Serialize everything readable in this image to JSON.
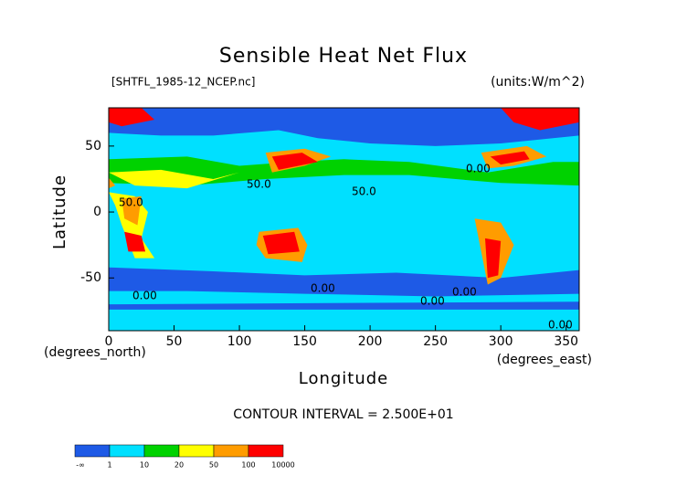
{
  "chart_data": {
    "type": "contour-map",
    "title": "Sensible Heat Net Flux",
    "subtitle": "[SHTFL_1985-12_NCEP.nc]",
    "units": "(units:W/m^2)",
    "x_label": "Longitude",
    "y_label": "Latitude",
    "x_unit_label": "(degrees_east)",
    "y_unit_label": "(degrees_north)",
    "contour_interval": "CONTOUR INTERVAL = 2.500E+01",
    "contour_labels": [
      "50.0",
      "50.0",
      "50.0",
      "0.00",
      "0.00",
      "0.00",
      "0.00",
      "0.00",
      "0.00"
    ],
    "xlim": [
      0,
      360
    ],
    "xticks": [
      0,
      50,
      100,
      150,
      200,
      250,
      300,
      350
    ],
    "ylim": [
      -90,
      79
    ],
    "yticks": [
      -50,
      0,
      50
    ],
    "colorbar": {
      "colors": [
        "#1e5ae6",
        "#00e0ff",
        "#00d200",
        "#ffff00",
        "#ff9c00",
        "#ff0000"
      ],
      "labels": [
        "-∞",
        "1",
        "10",
        "20",
        "50",
        "100",
        "10000"
      ]
    }
  }
}
